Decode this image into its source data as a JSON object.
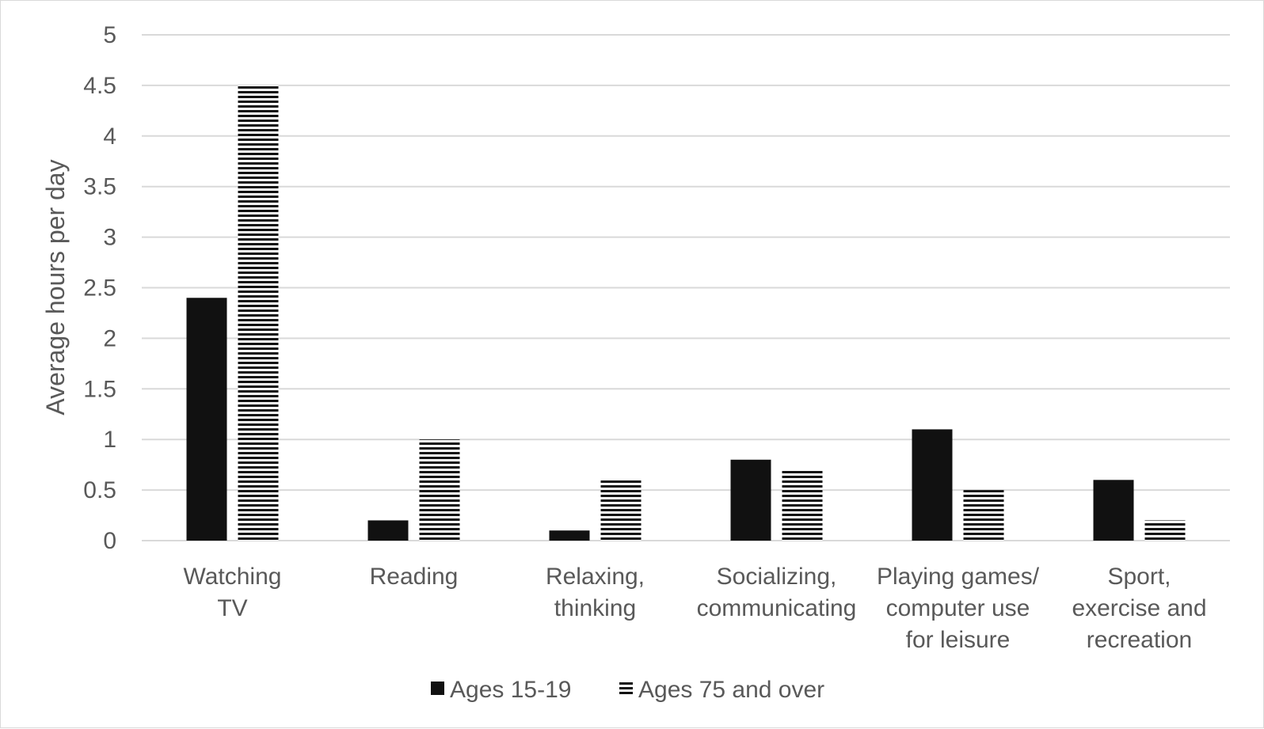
{
  "chart_data": {
    "type": "bar",
    "title": "",
    "xlabel": "",
    "ylabel": "Average hours per day",
    "ylim": [
      0,
      5
    ],
    "yticks": [
      "0",
      "0.5",
      "1",
      "1.5",
      "2",
      "2.5",
      "3",
      "3.5",
      "4",
      "4.5",
      "5"
    ],
    "categories": [
      [
        "Watching",
        "TV"
      ],
      [
        "Reading"
      ],
      [
        "Relaxing,",
        "thinking"
      ],
      [
        "Socializing,",
        "communicating"
      ],
      [
        "Playing games/",
        "computer use",
        "for leisure"
      ],
      [
        "Sport,",
        "exercise and",
        "recreation"
      ]
    ],
    "series": [
      {
        "name": "Ages 15-19",
        "values": [
          2.4,
          0.2,
          0.1,
          0.8,
          1.1,
          0.6
        ],
        "color": "#111111",
        "pattern": "solid"
      },
      {
        "name": "Ages 75 and over",
        "values": [
          4.5,
          1.0,
          0.6,
          0.7,
          0.5,
          0.2
        ],
        "color": "#111111",
        "pattern": "horizontal-stripes"
      }
    ],
    "grid": true,
    "legend_position": "bottom",
    "colors": {
      "gridline": "#d9d9d9",
      "text": "#595959"
    }
  }
}
